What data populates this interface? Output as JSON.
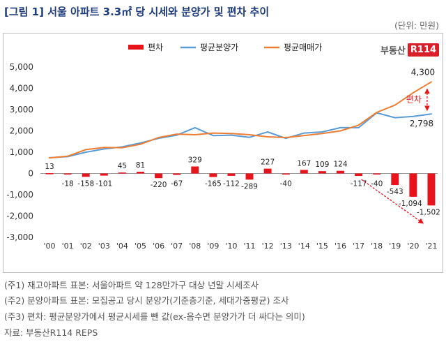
{
  "header": {
    "title": "[그림 1] 서울 아파트 3.3㎡ 당 시세와 분양가 및 편차 추이",
    "unit": "(단위: 만원)"
  },
  "logo": {
    "text": "부동산",
    "box": "R114"
  },
  "chart_data": {
    "type": "bar+line",
    "categories": [
      "'00",
      "'01",
      "'02",
      "'03",
      "'04",
      "'05",
      "'06",
      "'07",
      "'08",
      "'09",
      "'10",
      "'11",
      "'12",
      "'13",
      "'14",
      "'15",
      "'16",
      "'17",
      "'18",
      "'19",
      "'20",
      "'21"
    ],
    "ylim": [
      -3000,
      5000
    ],
    "yticks": [
      "5,000",
      "4,000",
      "3,000",
      "2,000",
      "1,000",
      "0",
      "-1,000",
      "-2,000",
      "-3,000"
    ],
    "ytick_values": [
      5000,
      4000,
      3000,
      2000,
      1000,
      0,
      -1000,
      -2000,
      -3000
    ],
    "legend": [
      {
        "name": "편차",
        "color": "#e8141b",
        "kind": "bar"
      },
      {
        "name": "평균분양가",
        "color": "#5b9bd5",
        "kind": "line"
      },
      {
        "name": "평균매매가",
        "color": "#ed7d31",
        "kind": "line"
      }
    ],
    "series": [
      {
        "name": "편차",
        "type": "bar",
        "color": "#e8141b",
        "values": [
          13,
          -18,
          -158,
          -101,
          45,
          81,
          -220,
          -67,
          329,
          -165,
          -112,
          -289,
          227,
          -40,
          167,
          109,
          124,
          -117,
          -40,
          -543,
          -1094,
          -1502
        ],
        "labels": [
          "13",
          "-18",
          "-158",
          "-101",
          "45",
          "81",
          "-220",
          "-67",
          "329",
          "-165",
          "-112",
          "-289",
          "227",
          "-40",
          "167",
          "109",
          "124",
          "-117",
          "-40",
          "-543",
          "-1,094",
          "-1,502"
        ]
      },
      {
        "name": "평균분양가",
        "type": "line",
        "color": "#5b9bd5",
        "values": [
          740,
          790,
          1000,
          1150,
          1250,
          1430,
          1650,
          1800,
          2150,
          1780,
          1800,
          1700,
          1950,
          1650,
          1900,
          1950,
          2150,
          2150,
          2850,
          2620,
          2680,
          2798
        ]
      },
      {
        "name": "평균매매가",
        "type": "line",
        "color": "#ed7d31",
        "values": [
          730,
          810,
          1120,
          1220,
          1210,
          1370,
          1690,
          1850,
          1820,
          1900,
          1880,
          1820,
          1720,
          1690,
          1780,
          1880,
          2000,
          2270,
          2870,
          3210,
          3790,
          4300
        ]
      }
    ],
    "annotations": {
      "end_price_label": "4,300",
      "end_presale_label": "2,798",
      "gap_label": "편차"
    }
  },
  "notes": [
    "(주1) 재고아파트 표본: 서울아파트 약 128만가구 대상 년말 시세조사",
    "(주2) 분양아파트 표본: 모집공고 당시 분양가(기준층기준, 세대가중평균) 조사",
    "(주3) 편차: 평균분양가에서 평균시세를 뺀 값(ex-음수면 분양가가 더 싸다는 의미)",
    "자료: 부동산R114 REPS"
  ]
}
